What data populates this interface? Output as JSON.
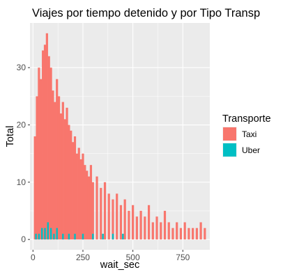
{
  "chart_data": {
    "type": "bar",
    "title": "Viajes por tiempo detenido y por Tipo Transp",
    "xlabel": "wait_sec",
    "ylabel": "Total",
    "xlim": [
      -15,
      885
    ],
    "ylim": [
      -1.8,
      37.8
    ],
    "x_ticks": [
      0,
      250,
      500,
      750
    ],
    "y_ticks": [
      0,
      10,
      20,
      30
    ],
    "grid": true,
    "legend": {
      "title": "Transporte",
      "placement": "right",
      "entries": [
        {
          "name": "Taxi",
          "color": "#F8766D"
        },
        {
          "name": "Uber",
          "color": "#00BFC4"
        }
      ]
    },
    "series": [
      {
        "name": "Taxi",
        "color": "#F8766D",
        "x": [
          10,
          20,
          30,
          40,
          50,
          60,
          70,
          80,
          90,
          100,
          110,
          120,
          130,
          140,
          150,
          160,
          170,
          180,
          190,
          200,
          210,
          220,
          230,
          240,
          250,
          260,
          270,
          280,
          290,
          300,
          320,
          340,
          360,
          380,
          400,
          420,
          440,
          460,
          480,
          500,
          520,
          540,
          560,
          580,
          600,
          620,
          640,
          660,
          680,
          700,
          720,
          740,
          760,
          780,
          800,
          820,
          840,
          860
        ],
        "values": [
          18,
          25,
          30,
          28,
          33,
          34,
          36,
          32,
          30,
          26,
          24,
          28,
          25,
          22,
          24,
          21,
          23,
          20,
          19,
          17,
          18,
          15,
          16,
          14,
          15,
          13,
          12,
          11,
          13,
          10,
          11,
          9,
          10,
          8,
          7,
          8,
          6,
          7,
          5,
          6,
          4,
          5,
          4,
          6,
          3,
          4,
          3,
          5,
          3,
          2,
          3,
          2,
          3,
          2,
          2,
          2,
          3,
          2
        ]
      },
      {
        "name": "Uber",
        "color": "#00BFC4",
        "x": [
          15,
          30,
          45,
          60,
          75,
          90,
          105,
          120,
          150,
          180,
          210,
          250,
          300,
          350,
          400,
          450
        ],
        "values": [
          1,
          1,
          2,
          2,
          3,
          2,
          1,
          2,
          1,
          1,
          1,
          1,
          1,
          1,
          1,
          1
        ]
      }
    ]
  }
}
